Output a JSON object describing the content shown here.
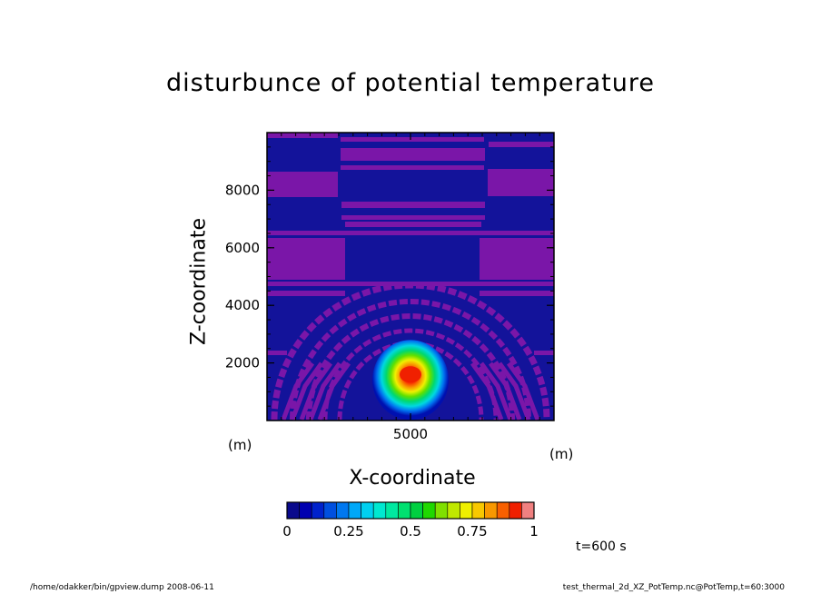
{
  "chart_data": {
    "type": "heatmap",
    "title": "disturbunce of potential temperature",
    "xlabel": "X-coordinate",
    "ylabel": "Z-coordinate",
    "xunit": "(m)",
    "yunit": "(m)",
    "xlim": [
      0,
      10000
    ],
    "ylim": [
      0,
      10000
    ],
    "xticks": [
      {
        "value": 5000,
        "label": "5000"
      }
    ],
    "yticks": [
      {
        "value": 2000,
        "label": "2000"
      },
      {
        "value": 4000,
        "label": "4000"
      },
      {
        "value": 6000,
        "label": "6000"
      },
      {
        "value": 8000,
        "label": "8000"
      }
    ],
    "warm_bubble": {
      "x_center": 5000,
      "z_center": 1600,
      "peak_value": 0.9
    },
    "colorbar": {
      "range": [
        0,
        1
      ],
      "levels": 20,
      "colors": [
        "#0a0a8c",
        "#0000b0",
        "#0022cc",
        "#0050e0",
        "#0078f0",
        "#00a8f8",
        "#00d0f0",
        "#00e8d0",
        "#00e8a0",
        "#00e070",
        "#00d040",
        "#20d800",
        "#80e000",
        "#c0e800",
        "#f0f000",
        "#f8c800",
        "#f89800",
        "#f86000",
        "#f02000",
        "#f08080"
      ],
      "ticks": [
        {
          "value": 0,
          "label": "0"
        },
        {
          "value": 0.25,
          "label": "0.25"
        },
        {
          "value": 0.5,
          "label": "0.5"
        },
        {
          "value": 0.75,
          "label": "0.75"
        },
        {
          "value": 1,
          "label": "1"
        }
      ]
    }
  },
  "time_label": "t=600  s",
  "footer_left": "/home/odakker/bin/gpview.dump  2008-06-11",
  "footer_right": "test_thermal_2d_XZ_PotTemp.nc@PotTemp,t=60:3000",
  "colors": {
    "background_blue": "#13139a",
    "band_purple": "#7a16a8"
  }
}
